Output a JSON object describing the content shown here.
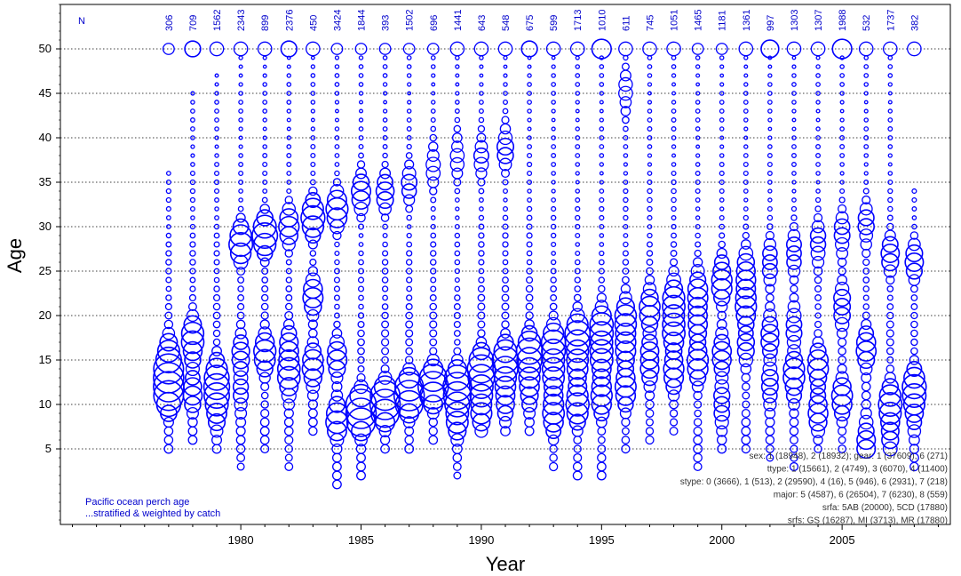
{
  "colors": {
    "bubble": "#0000ff",
    "axis": "#000000",
    "grid": "#000000",
    "n_label": "#0000cc",
    "note": "#333333"
  },
  "chart_data": {
    "type": "scatter",
    "title": "",
    "xlabel": "Year",
    "ylabel": "Age",
    "xlim": [
      1972.5,
      2009.5
    ],
    "ylim": [
      -3.5,
      55
    ],
    "x_ticks": [
      1980,
      1985,
      1990,
      1995,
      2000,
      2005
    ],
    "y_ticks": [
      5,
      10,
      15,
      20,
      25,
      30,
      35,
      40,
      45,
      50
    ],
    "grid": "horizontal dotted",
    "n_header": "N",
    "years": [
      1977,
      1978,
      1979,
      1980,
      1981,
      1982,
      1983,
      1984,
      1985,
      1986,
      1987,
      1988,
      1989,
      1990,
      1991,
      1992,
      1993,
      1994,
      1995,
      1996,
      1997,
      1998,
      1999,
      2000,
      2001,
      2002,
      2003,
      2004,
      2005,
      2006,
      2007,
      2008
    ],
    "n_values": [
      "306",
      "709",
      "1562",
      "2343",
      "899",
      "2376",
      "450",
      "3424",
      "1844",
      "393",
      "1502",
      "696",
      "1441",
      "643",
      "548",
      "675",
      "599",
      "1713",
      "1010",
      "611",
      "745",
      "1051",
      "1465",
      "1181",
      "1361",
      "997",
      "1303",
      "1307",
      "1988",
      "532",
      "1737",
      "382"
    ],
    "series": [
      {
        "year": 1977,
        "peaks": [
          [
            15,
            0.9
          ],
          [
            11,
            0.8
          ],
          [
            13,
            0.6
          ]
        ],
        "age_min": 5,
        "age_max": 36,
        "plus": 0.2
      },
      {
        "year": 1978,
        "peaks": [
          [
            17,
            0.8
          ],
          [
            11,
            0.4
          ]
        ],
        "age_min": 6,
        "age_max": 45,
        "plus": 0.4
      },
      {
        "year": 1979,
        "peaks": [
          [
            10,
            0.8
          ],
          [
            13,
            0.6
          ]
        ],
        "age_min": 5,
        "age_max": 47,
        "plus": 0.3
      },
      {
        "year": 1980,
        "peaks": [
          [
            28,
            0.7
          ],
          [
            16,
            0.4
          ],
          [
            11,
            0.3
          ]
        ],
        "age_min": 3,
        "age_max": 49,
        "plus": 0.3
      },
      {
        "year": 1981,
        "peaks": [
          [
            29,
            0.8
          ],
          [
            16,
            0.6
          ]
        ],
        "age_min": 5,
        "age_max": 49,
        "plus": 0.3
      },
      {
        "year": 1982,
        "peaks": [
          [
            13,
            0.7
          ],
          [
            30,
            0.5
          ],
          [
            17,
            0.4
          ]
        ],
        "age_min": 3,
        "age_max": 49,
        "plus": 0.4
      },
      {
        "year": 1983,
        "peaks": [
          [
            31,
            0.7
          ],
          [
            22,
            0.5
          ],
          [
            14,
            0.6
          ]
        ],
        "age_min": 7,
        "age_max": 49,
        "plus": 0.3
      },
      {
        "year": 1984,
        "peaks": [
          [
            32,
            0.6
          ],
          [
            15,
            0.5
          ],
          [
            8,
            0.6
          ]
        ],
        "age_min": 1,
        "age_max": 49,
        "plus": 0.2
      },
      {
        "year": 1985,
        "peaks": [
          [
            9,
            1.4
          ],
          [
            34,
            0.5
          ]
        ],
        "age_min": 2,
        "age_max": 49,
        "plus": 0.2
      },
      {
        "year": 1986,
        "peaks": [
          [
            10,
            1.3
          ],
          [
            34,
            0.4
          ]
        ],
        "age_min": 5,
        "age_max": 49,
        "plus": 0.2
      },
      {
        "year": 1987,
        "peaks": [
          [
            11,
            1.2
          ],
          [
            35,
            0.3
          ]
        ],
        "age_min": 5,
        "age_max": 49,
        "plus": 0.2
      },
      {
        "year": 1988,
        "peaks": [
          [
            12,
            1.1
          ],
          [
            37,
            0.3
          ]
        ],
        "age_min": 6,
        "age_max": 49,
        "plus": 0.2
      },
      {
        "year": 1989,
        "peaks": [
          [
            12,
            0.9
          ],
          [
            9,
            0.8
          ],
          [
            38,
            0.3
          ]
        ],
        "age_min": 2,
        "age_max": 49,
        "plus": 0.3
      },
      {
        "year": 1990,
        "peaks": [
          [
            14,
            0.9
          ],
          [
            10,
            0.8
          ],
          [
            38,
            0.3
          ]
        ],
        "age_min": 7,
        "age_max": 49,
        "plus": 0.3
      },
      {
        "year": 1991,
        "peaks": [
          [
            15,
            0.8
          ],
          [
            11,
            0.6
          ],
          [
            39,
            0.4
          ]
        ],
        "age_min": 7,
        "age_max": 49,
        "plus": 0.3
      },
      {
        "year": 1992,
        "peaks": [
          [
            16,
            0.8
          ],
          [
            12,
            0.6
          ]
        ],
        "age_min": 7,
        "age_max": 49,
        "plus": 0.4
      },
      {
        "year": 1993,
        "peaks": [
          [
            17,
            0.7
          ],
          [
            13,
            0.7
          ],
          [
            9,
            0.5
          ]
        ],
        "age_min": 3,
        "age_max": 49,
        "plus": 0.3
      },
      {
        "year": 1994,
        "peaks": [
          [
            18,
            0.8
          ],
          [
            14,
            0.6
          ],
          [
            10,
            0.6
          ]
        ],
        "age_min": 2,
        "age_max": 49,
        "plus": 0.3
      },
      {
        "year": 1995,
        "peaks": [
          [
            19,
            0.7
          ],
          [
            15,
            0.7
          ],
          [
            11,
            0.5
          ]
        ],
        "age_min": 2,
        "age_max": 49,
        "plus": 0.6
      },
      {
        "year": 1996,
        "peaks": [
          [
            20,
            0.6
          ],
          [
            16,
            0.5
          ],
          [
            12,
            0.5
          ],
          [
            45,
            0.3
          ]
        ],
        "age_min": 5,
        "age_max": 49,
        "plus": 0.3
      },
      {
        "year": 1997,
        "peaks": [
          [
            21,
            0.6
          ],
          [
            15,
            0.6
          ]
        ],
        "age_min": 6,
        "age_max": 49,
        "plus": 0.3
      },
      {
        "year": 1998,
        "peaks": [
          [
            22,
            0.7
          ],
          [
            18,
            0.6
          ],
          [
            14,
            0.5
          ]
        ],
        "age_min": 7,
        "age_max": 49,
        "plus": 0.3
      },
      {
        "year": 1999,
        "peaks": [
          [
            23,
            0.6
          ],
          [
            15,
            0.6
          ],
          [
            19,
            0.4
          ]
        ],
        "age_min": 3,
        "age_max": 49,
        "plus": 0.2
      },
      {
        "year": 2000,
        "peaks": [
          [
            24,
            0.7
          ],
          [
            16,
            0.5
          ],
          [
            10,
            0.4
          ]
        ],
        "age_min": 5,
        "age_max": 49,
        "plus": 0.2
      },
      {
        "year": 2001,
        "peaks": [
          [
            25,
            0.6
          ],
          [
            21,
            0.5
          ],
          [
            17,
            0.4
          ]
        ],
        "age_min": 5,
        "age_max": 49,
        "plus": 0.3
      },
      {
        "year": 2002,
        "peaks": [
          [
            26,
            0.4
          ],
          [
            18,
            0.5
          ],
          [
            12,
            0.4
          ]
        ],
        "age_min": 4,
        "age_max": 49,
        "plus": 0.5
      },
      {
        "year": 2003,
        "peaks": [
          [
            13,
            0.7
          ],
          [
            27,
            0.4
          ],
          [
            19,
            0.4
          ]
        ],
        "age_min": 3,
        "age_max": 49,
        "plus": 0.3
      },
      {
        "year": 2004,
        "peaks": [
          [
            14,
            0.6
          ],
          [
            28,
            0.4
          ],
          [
            9,
            0.4
          ]
        ],
        "age_min": 5,
        "age_max": 49,
        "plus": 0.3
      },
      {
        "year": 2005,
        "peaks": [
          [
            21,
            0.5
          ],
          [
            11,
            0.5
          ],
          [
            29,
            0.4
          ]
        ],
        "age_min": 5,
        "age_max": 49,
        "plus": 0.6
      },
      {
        "year": 2006,
        "peaks": [
          [
            16,
            0.5
          ],
          [
            6,
            0.5
          ],
          [
            30,
            0.4
          ]
        ],
        "age_min": 5,
        "age_max": 49,
        "plus": 0.3
      },
      {
        "year": 2007,
        "peaks": [
          [
            10,
            0.6
          ],
          [
            27,
            0.4
          ],
          [
            7,
            0.4
          ]
        ],
        "age_min": 5,
        "age_max": 49,
        "plus": 0.3
      },
      {
        "year": 2008,
        "peaks": [
          [
            12,
            0.6
          ],
          [
            9,
            0.4
          ],
          [
            26,
            0.4
          ]
        ],
        "age_min": 3,
        "age_max": 34,
        "plus": 0.3
      }
    ],
    "annotations_left": [
      "Pacific ocean perch age",
      "...stratified & weighted by catch"
    ],
    "annotations_right": [
      "sex: 1 (18948), 2 (18932);    gear: 1 (37609), 6 (271)",
      "ttype: 1 (15661), 2 (4749), 3 (6070), 4 (11400)",
      "stype: 0 (3666), 1 (513), 2 (29590), 4 (16), 5 (946), 6 (2931), 7 (218)",
      "major: 5 (4587), 6 (26504), 7 (6230), 8 (559)",
      "srfa: 5AB (20000), 5CD (17880)",
      "srfs: GS (16287), MI (3713), MR (17880)"
    ]
  }
}
